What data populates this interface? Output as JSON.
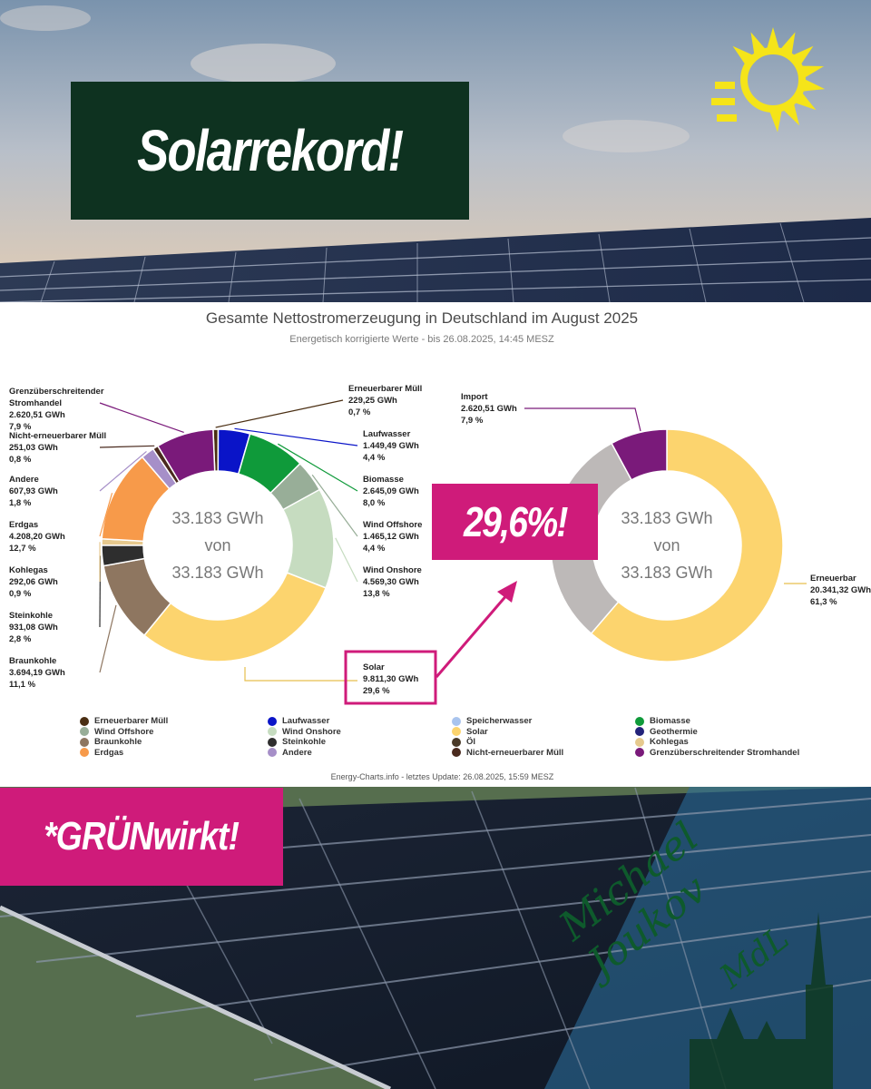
{
  "headline": "Solarrekord!",
  "callout": "29,6%!",
  "tagline": "*GRÜNwirkt!",
  "signature": {
    "name": "Michael Joukov",
    "suffix": "MdL"
  },
  "chart": {
    "title": "Gesamte Nettostromerzeugung in Deutschland im August 2025",
    "subtitle": "Energetisch korrigierte Werte - bis 26.08.2025, 14:45 MESZ",
    "source": "Energy-Charts.info - letztes Update: 26.08.2025, 15:59 MESZ",
    "left_center": [
      "33.183 GWh",
      "von",
      "33.183 GWh"
    ],
    "right_center": [
      "33.183 GWh",
      "von",
      "33.183 GWh"
    ]
  },
  "chart_data": [
    {
      "type": "pie",
      "donut": true,
      "title": "",
      "slices": [
        {
          "name": "Erneuerbarer Müll",
          "value": 229.25,
          "value_label": "229,25 GWh",
          "pct": "0,7 %",
          "color": "#4a2e12"
        },
        {
          "name": "Laufwasser",
          "value": 1449.49,
          "value_label": "1.449,49 GWh",
          "pct": "4,4 %",
          "color": "#0a14c8"
        },
        {
          "name": "Biomasse",
          "value": 2645.09,
          "value_label": "2.645,09 GWh",
          "pct": "8,0 %",
          "color": "#0f9a3a"
        },
        {
          "name": "Wind Offshore",
          "value": 1465.12,
          "value_label": "1.465,12 GWh",
          "pct": "4,4 %",
          "color": "#98ae98"
        },
        {
          "name": "Wind Onshore",
          "value": 4569.3,
          "value_label": "4.569,30 GWh",
          "pct": "13,8 %",
          "color": "#c6dcc0"
        },
        {
          "name": "Solar",
          "value": 9811.3,
          "value_label": "9.811,30 GWh",
          "pct": "29,6 %",
          "color": "#fcd46e"
        },
        {
          "name": "Braunkohle",
          "value": 3694.19,
          "value_label": "3.694,19 GWh",
          "pct": "11,1 %",
          "color": "#8e7660"
        },
        {
          "name": "Steinkohle",
          "value": 931.08,
          "value_label": "931,08 GWh",
          "pct": "2,8 %",
          "color": "#2e2e2e"
        },
        {
          "name": "Kohlegas",
          "value": 292.06,
          "value_label": "292,06 GWh",
          "pct": "0,9 %",
          "color": "#e6c98e"
        },
        {
          "name": "Erdgas",
          "value": 4208.2,
          "value_label": "4.208,20 GWh",
          "pct": "12,7 %",
          "color": "#f79a4a"
        },
        {
          "name": "Andere",
          "value": 607.93,
          "value_label": "607,93 GWh",
          "pct": "1,8 %",
          "color": "#a68fc8"
        },
        {
          "name": "Nicht-erneuerbarer Müll",
          "value": 251.03,
          "value_label": "251,03 GWh",
          "pct": "0,8 %",
          "color": "#4a2a1e"
        },
        {
          "name": "Grenzüberschreitender Stromhandel",
          "value": 2620.51,
          "value_label": "2.620,51 GWh",
          "pct": "7,9 %",
          "color": "#7a1a7a"
        }
      ]
    },
    {
      "type": "pie",
      "donut": true,
      "title": "",
      "slices": [
        {
          "name": "Erneuerbar",
          "value": 20341.32,
          "value_label": "20.341,32 GWh",
          "pct": "61,3 %",
          "color": "#fcd46e"
        },
        {
          "name": "",
          "value": 10221.17,
          "value_label": "",
          "pct": "",
          "color": "#bdb9b8"
        },
        {
          "name": "Import",
          "value": 2620.51,
          "value_label": "2.620,51 GWh",
          "pct": "7,9 %",
          "color": "#7a1a7a"
        }
      ]
    }
  ],
  "legend": [
    {
      "label": "Erneuerbarer Müll",
      "color": "#4a2e12"
    },
    {
      "label": "Laufwasser",
      "color": "#0a14c8"
    },
    {
      "label": "Speicherwasser",
      "color": "#a9c4ee"
    },
    {
      "label": "Biomasse",
      "color": "#0f9a3a"
    },
    {
      "label": "Wind Offshore",
      "color": "#98ae98"
    },
    {
      "label": "Wind Onshore",
      "color": "#c6dcc0"
    },
    {
      "label": "Solar",
      "color": "#fcd46e"
    },
    {
      "label": "Geothermie",
      "color": "#23237a"
    },
    {
      "label": "Braunkohle",
      "color": "#8e7660"
    },
    {
      "label": "Steinkohle",
      "color": "#2e2e2e"
    },
    {
      "label": "Öl",
      "color": "#4a3a28"
    },
    {
      "label": "Kohlegas",
      "color": "#e6c98e"
    },
    {
      "label": "Erdgas",
      "color": "#f79a4a"
    },
    {
      "label": "Andere",
      "color": "#a68fc8"
    },
    {
      "label": "Nicht-erneuerbarer Müll",
      "color": "#4a2a1e"
    },
    {
      "label": "Grenzüberschreitender Stromhandel",
      "color": "#7a1a7a"
    }
  ],
  "colors": {
    "brand_green": "#0e3220",
    "accent_magenta": "#cf1b7a",
    "logo_yellow": "#f5e419"
  }
}
